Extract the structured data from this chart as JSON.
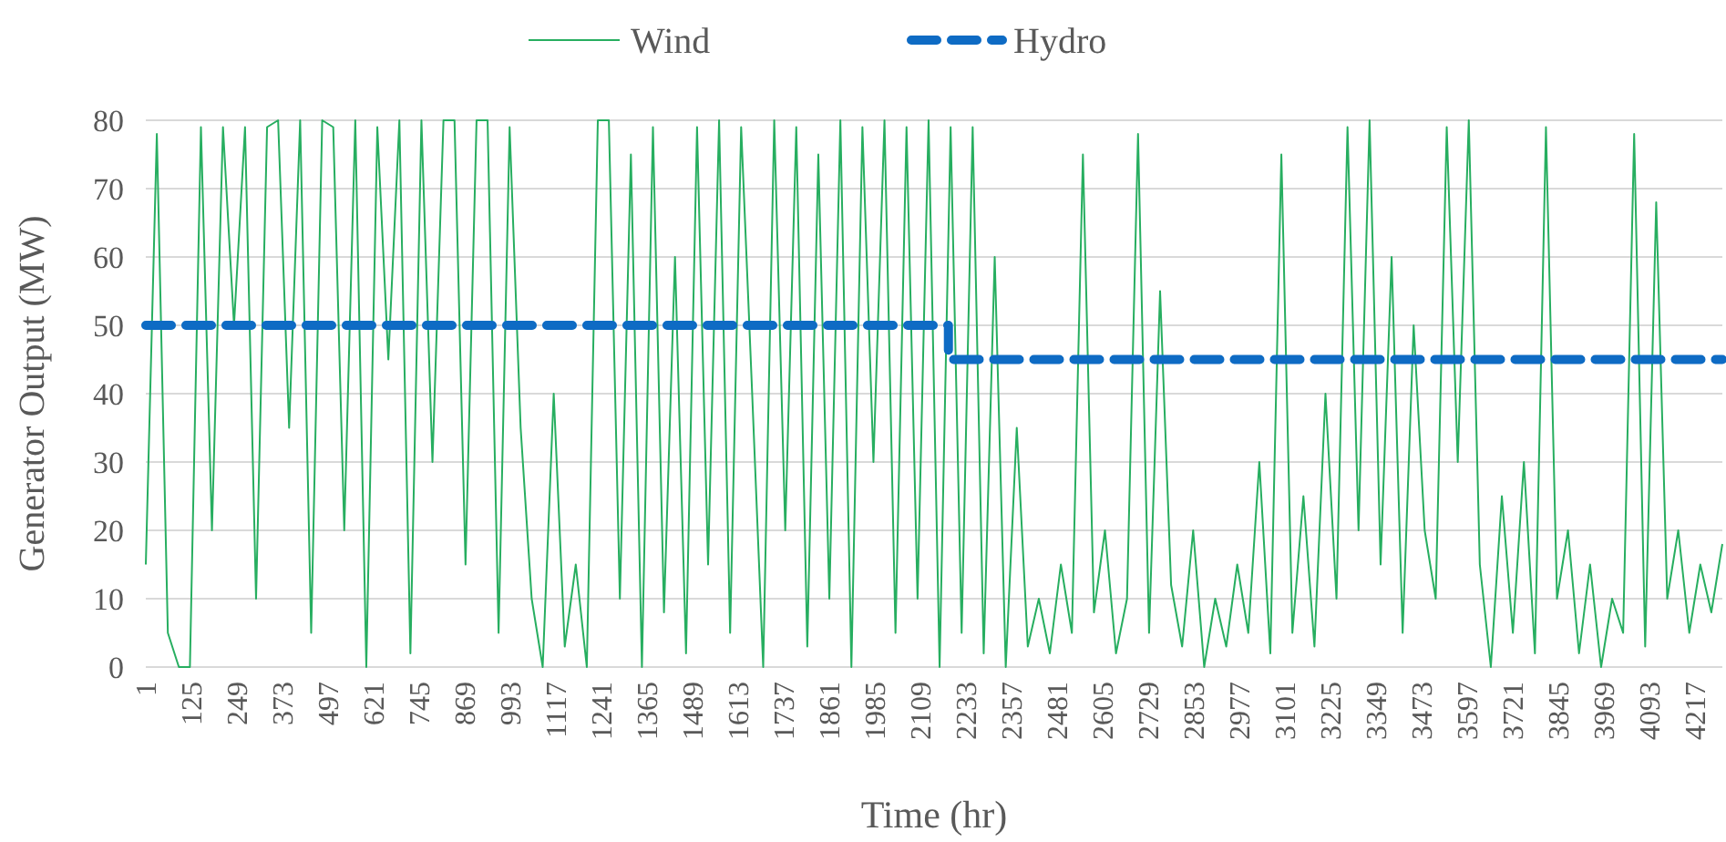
{
  "chart_data": {
    "type": "line",
    "xlabel": "Time (hr)",
    "ylabel": "Generator Output (MW)",
    "xlim": [
      1,
      4291
    ],
    "xticks": [
      1,
      125,
      249,
      373,
      497,
      621,
      745,
      869,
      993,
      1117,
      1241,
      1365,
      1489,
      1613,
      1737,
      1861,
      1985,
      2109,
      2233,
      2357,
      2481,
      2605,
      2729,
      2853,
      2977,
      3101,
      3225,
      3349,
      3473,
      3597,
      3721,
      3845,
      3969,
      4093,
      4217
    ],
    "ylim": [
      0,
      80
    ],
    "yticks": [
      0,
      10,
      20,
      30,
      40,
      50,
      60,
      70,
      80
    ],
    "grid": "y",
    "legend": "top",
    "marker": "none",
    "series": [
      {
        "name": "Wind",
        "color": "#27ae60",
        "line_style": "solid",
        "x": [
          1,
          31,
          61,
          91,
          121,
          151,
          181,
          211,
          241,
          271,
          301,
          331,
          361,
          391,
          421,
          451,
          481,
          511,
          541,
          571,
          601,
          631,
          661,
          691,
          721,
          751,
          781,
          811,
          841,
          871,
          901,
          931,
          961,
          991,
          1021,
          1051,
          1081,
          1111,
          1141,
          1171,
          1201,
          1231,
          1261,
          1291,
          1321,
          1351,
          1381,
          1411,
          1441,
          1471,
          1501,
          1531,
          1561,
          1591,
          1621,
          1651,
          1681,
          1711,
          1741,
          1771,
          1801,
          1831,
          1861,
          1891,
          1921,
          1951,
          1981,
          2011,
          2041,
          2071,
          2101,
          2131,
          2161,
          2191,
          2221,
          2251,
          2281,
          2311,
          2341,
          2371,
          2401,
          2431,
          2461,
          2491,
          2521,
          2551,
          2581,
          2611,
          2641,
          2671,
          2701,
          2731,
          2761,
          2791,
          2821,
          2851,
          2881,
          2911,
          2941,
          2971,
          3001,
          3031,
          3061,
          3091,
          3121,
          3151,
          3181,
          3211,
          3241,
          3271,
          3301,
          3331,
          3361,
          3391,
          3421,
          3451,
          3481,
          3511,
          3541,
          3571,
          3601,
          3631,
          3661,
          3691,
          3721,
          3751,
          3781,
          3811,
          3841,
          3871,
          3901,
          3931,
          3961,
          3991,
          4021,
          4051,
          4081,
          4111,
          4141,
          4171,
          4201,
          4231,
          4261,
          4291
        ],
        "values": [
          15,
          78,
          5,
          0,
          0,
          79,
          20,
          79,
          50,
          79,
          10,
          79,
          80,
          35,
          80,
          5,
          80,
          79,
          20,
          80,
          0,
          79,
          45,
          80,
          2,
          80,
          30,
          80,
          80,
          15,
          80,
          80,
          5,
          79,
          35,
          10,
          0,
          40,
          3,
          15,
          0,
          80,
          80,
          10,
          75,
          0,
          79,
          8,
          60,
          2,
          79,
          15,
          80,
          5,
          79,
          40,
          0,
          80,
          20,
          79,
          3,
          75,
          10,
          80,
          0,
          79,
          30,
          80,
          5,
          79,
          10,
          80,
          0,
          79,
          5,
          79,
          2,
          60,
          0,
          35,
          3,
          10,
          2,
          15,
          5,
          75,
          8,
          20,
          2,
          10,
          78,
          5,
          55,
          12,
          3,
          20,
          0,
          10,
          3,
          15,
          5,
          30,
          2,
          75,
          5,
          25,
          3,
          40,
          10,
          79,
          20,
          80,
          15,
          60,
          5,
          50,
          20,
          10,
          79,
          30,
          80,
          15,
          0,
          25,
          5,
          30,
          2,
          79,
          10,
          20,
          2,
          15,
          0,
          10,
          5,
          78,
          3,
          68,
          10,
          20,
          5,
          15,
          8,
          18
        ]
      },
      {
        "name": "Hydro",
        "color": "#0e6bc4",
        "line_style": "dashed",
        "x": [
          1,
          2185,
          2185,
          4291
        ],
        "values": [
          50,
          50,
          45,
          45
        ]
      }
    ]
  }
}
